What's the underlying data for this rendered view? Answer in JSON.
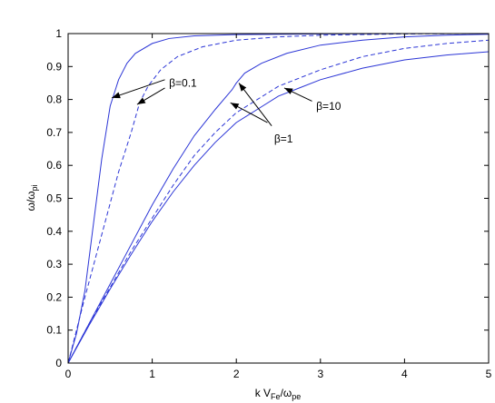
{
  "chart_data": {
    "type": "line",
    "xlabel": {
      "main": "k V",
      "sub1": "Fe",
      "slash": "/ω",
      "sub2": "pe"
    },
    "ylabel": {
      "main": "ω/ω",
      "sub": "pi"
    },
    "xlim": [
      0,
      5
    ],
    "ylim": [
      0,
      1
    ],
    "x_ticks": [
      0,
      1,
      2,
      3,
      4,
      5
    ],
    "y_ticks": [
      0,
      0.1,
      0.2,
      0.3,
      0.4,
      0.5,
      0.6,
      0.7,
      0.8,
      0.9,
      1
    ],
    "x_tick_labels": [
      "0",
      "1",
      "2",
      "3",
      "4",
      "5"
    ],
    "y_tick_labels": [
      "0",
      "0.1",
      "0.2",
      "0.3",
      "0.4",
      "0.5",
      "0.6",
      "0.7",
      "0.8",
      "0.9",
      "1"
    ],
    "grid": false,
    "line_color": "#2b35d6",
    "series": [
      {
        "style": "solid",
        "points": [
          [
            0,
            0
          ],
          [
            0.1,
            0.09
          ],
          [
            0.2,
            0.22
          ],
          [
            0.3,
            0.42
          ],
          [
            0.4,
            0.62
          ],
          [
            0.5,
            0.78
          ],
          [
            0.55,
            0.82
          ],
          [
            0.6,
            0.86
          ],
          [
            0.7,
            0.91
          ],
          [
            0.8,
            0.94
          ],
          [
            1.0,
            0.97
          ],
          [
            1.2,
            0.985
          ],
          [
            1.5,
            0.993
          ],
          [
            2.0,
            0.997
          ],
          [
            3.0,
            0.999
          ],
          [
            4.0,
            1.0
          ],
          [
            5.0,
            1.0
          ]
        ]
      },
      {
        "style": "dashed",
        "points": [
          [
            0,
            0
          ],
          [
            0.2,
            0.2
          ],
          [
            0.4,
            0.39
          ],
          [
            0.6,
            0.58
          ],
          [
            0.75,
            0.7
          ],
          [
            0.85,
            0.79
          ],
          [
            0.95,
            0.84
          ],
          [
            1.1,
            0.89
          ],
          [
            1.3,
            0.93
          ],
          [
            1.6,
            0.96
          ],
          [
            2.0,
            0.98
          ],
          [
            2.5,
            0.99
          ],
          [
            3.0,
            0.995
          ],
          [
            4.0,
            0.999
          ],
          [
            5.0,
            1.0
          ]
        ]
      },
      {
        "style": "solid",
        "points": [
          [
            0,
            0
          ],
          [
            0.25,
            0.12
          ],
          [
            0.5,
            0.24
          ],
          [
            0.75,
            0.36
          ],
          [
            1.0,
            0.48
          ],
          [
            1.25,
            0.59
          ],
          [
            1.5,
            0.69
          ],
          [
            1.75,
            0.77
          ],
          [
            1.95,
            0.83
          ],
          [
            2.0,
            0.85
          ],
          [
            2.1,
            0.88
          ],
          [
            2.3,
            0.91
          ],
          [
            2.6,
            0.94
          ],
          [
            3.0,
            0.965
          ],
          [
            3.5,
            0.98
          ],
          [
            4.0,
            0.99
          ],
          [
            4.5,
            0.995
          ],
          [
            5.0,
            0.998
          ]
        ]
      },
      {
        "style": "dashed",
        "points": [
          [
            0,
            0
          ],
          [
            0.25,
            0.12
          ],
          [
            0.5,
            0.23
          ],
          [
            0.75,
            0.34
          ],
          [
            1.0,
            0.44
          ],
          [
            1.25,
            0.54
          ],
          [
            1.5,
            0.63
          ],
          [
            1.75,
            0.7
          ],
          [
            2.0,
            0.76
          ],
          [
            2.25,
            0.8
          ],
          [
            2.5,
            0.84
          ],
          [
            3.0,
            0.89
          ],
          [
            3.5,
            0.93
          ],
          [
            4.0,
            0.955
          ],
          [
            4.5,
            0.97
          ],
          [
            5.0,
            0.98
          ]
        ]
      },
      {
        "style": "solid",
        "points": [
          [
            0,
            0
          ],
          [
            0.25,
            0.115
          ],
          [
            0.5,
            0.225
          ],
          [
            0.75,
            0.33
          ],
          [
            1.0,
            0.43
          ],
          [
            1.25,
            0.52
          ],
          [
            1.5,
            0.6
          ],
          [
            1.75,
            0.67
          ],
          [
            2.0,
            0.73
          ],
          [
            2.25,
            0.77
          ],
          [
            2.5,
            0.81
          ],
          [
            2.75,
            0.835
          ],
          [
            3.0,
            0.86
          ],
          [
            3.5,
            0.895
          ],
          [
            4.0,
            0.92
          ],
          [
            4.5,
            0.935
          ],
          [
            5.0,
            0.945
          ]
        ]
      }
    ],
    "annotations": [
      {
        "text": "β=0.1",
        "text_at": [
          1.2,
          0.85
        ],
        "arrows": [
          {
            "from": [
              1.15,
              0.86
            ],
            "to": [
              0.52,
              0.805
            ]
          },
          {
            "from": [
              1.15,
              0.835
            ],
            "to": [
              0.82,
              0.785
            ]
          }
        ]
      },
      {
        "text": "β=1",
        "text_at": [
          2.45,
          0.68
        ],
        "arrows": [
          {
            "from": [
              2.42,
              0.72
            ],
            "to": [
              2.03,
              0.85
            ]
          },
          {
            "from": [
              2.37,
              0.73
            ],
            "to": [
              1.93,
              0.79
            ]
          }
        ]
      },
      {
        "text": "β=10",
        "text_at": [
          2.95,
          0.78
        ],
        "arrows": [
          {
            "from": [
              2.9,
              0.795
            ],
            "to": [
              2.57,
              0.835
            ]
          }
        ]
      }
    ]
  }
}
